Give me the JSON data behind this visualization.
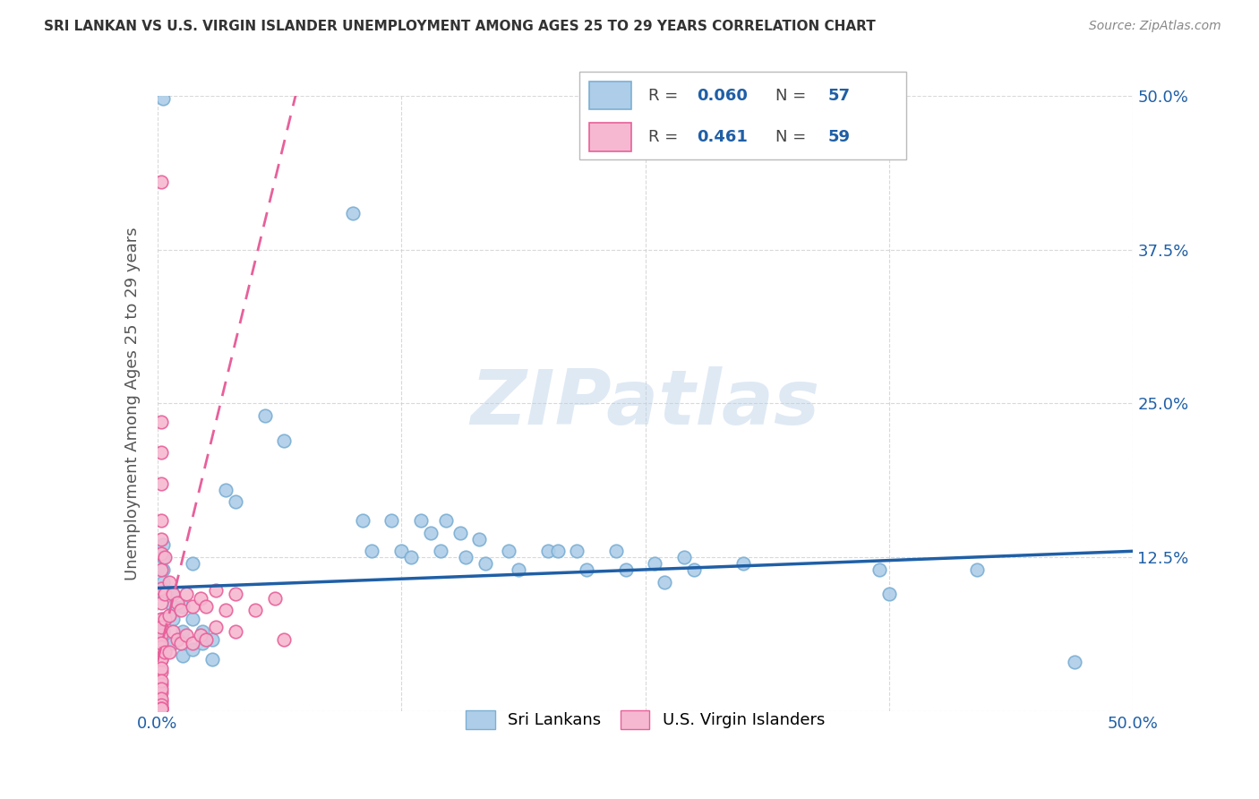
{
  "title": "SRI LANKAN VS U.S. VIRGIN ISLANDER UNEMPLOYMENT AMONG AGES 25 TO 29 YEARS CORRELATION CHART",
  "source": "Source: ZipAtlas.com",
  "ylabel": "Unemployment Among Ages 25 to 29 years",
  "xlim": [
    0,
    0.5
  ],
  "ylim": [
    0,
    0.5
  ],
  "sri_lankans": {
    "R": 0.06,
    "N": 57,
    "edge_color": "#7bafd4",
    "face_color": "#aecde8",
    "trend_color": "#1f5fa6",
    "label": "Sri Lankans",
    "x": [
      0.003,
      0.003,
      0.003,
      0.003,
      0.003,
      0.003,
      0.003,
      0.003,
      0.008,
      0.008,
      0.008,
      0.008,
      0.013,
      0.013,
      0.013,
      0.018,
      0.018,
      0.018,
      0.023,
      0.023,
      0.028,
      0.028,
      0.035,
      0.04,
      0.055,
      0.065,
      0.1,
      0.105,
      0.11,
      0.12,
      0.125,
      0.13,
      0.135,
      0.14,
      0.145,
      0.148,
      0.155,
      0.158,
      0.165,
      0.168,
      0.18,
      0.185,
      0.2,
      0.205,
      0.215,
      0.22,
      0.235,
      0.24,
      0.255,
      0.26,
      0.27,
      0.275,
      0.3,
      0.37,
      0.375,
      0.42,
      0.47
    ],
    "y": [
      0.498,
      0.135,
      0.125,
      0.115,
      0.105,
      0.095,
      0.075,
      0.065,
      0.095,
      0.085,
      0.075,
      0.055,
      0.085,
      0.065,
      0.045,
      0.075,
      0.12,
      0.05,
      0.065,
      0.055,
      0.058,
      0.042,
      0.18,
      0.17,
      0.24,
      0.22,
      0.405,
      0.155,
      0.13,
      0.155,
      0.13,
      0.125,
      0.155,
      0.145,
      0.13,
      0.155,
      0.145,
      0.125,
      0.14,
      0.12,
      0.13,
      0.115,
      0.13,
      0.13,
      0.13,
      0.115,
      0.13,
      0.115,
      0.12,
      0.105,
      0.125,
      0.115,
      0.12,
      0.115,
      0.095,
      0.115,
      0.04
    ]
  },
  "usvi": {
    "R": 0.461,
    "N": 59,
    "edge_color": "#e8609a",
    "face_color": "#f5b8d0",
    "trend_color": "#e8609a",
    "label": "U.S. Virgin Islanders",
    "x": [
      0.002,
      0.002,
      0.002,
      0.002,
      0.002,
      0.002,
      0.002,
      0.002,
      0.002,
      0.002,
      0.002,
      0.002,
      0.002,
      0.002,
      0.002,
      0.002,
      0.002,
      0.002,
      0.002,
      0.002,
      0.002,
      0.002,
      0.002,
      0.002,
      0.002,
      0.002,
      0.002,
      0.002,
      0.002,
      0.002,
      0.004,
      0.004,
      0.004,
      0.004,
      0.006,
      0.006,
      0.006,
      0.008,
      0.008,
      0.01,
      0.01,
      0.012,
      0.012,
      0.015,
      0.015,
      0.018,
      0.018,
      0.022,
      0.022,
      0.025,
      0.025,
      0.03,
      0.03,
      0.035,
      0.04,
      0.04,
      0.05,
      0.06,
      0.065
    ],
    "y": [
      0.43,
      0.235,
      0.21,
      0.185,
      0.155,
      0.14,
      0.128,
      0.115,
      0.1,
      0.088,
      0.075,
      0.062,
      0.052,
      0.042,
      0.032,
      0.022,
      0.015,
      0.008,
      0.002,
      0.002,
      0.068,
      0.055,
      0.042,
      0.035,
      0.025,
      0.018,
      0.01,
      0.005,
      0.002,
      0.002,
      0.125,
      0.095,
      0.075,
      0.048,
      0.105,
      0.078,
      0.048,
      0.095,
      0.065,
      0.088,
      0.058,
      0.082,
      0.055,
      0.095,
      0.062,
      0.085,
      0.055,
      0.092,
      0.062,
      0.085,
      0.058,
      0.098,
      0.068,
      0.082,
      0.095,
      0.065,
      0.082,
      0.092,
      0.058
    ]
  },
  "watermark": "ZIPatlas",
  "background_color": "#ffffff",
  "grid_color": "#d0d0d0"
}
